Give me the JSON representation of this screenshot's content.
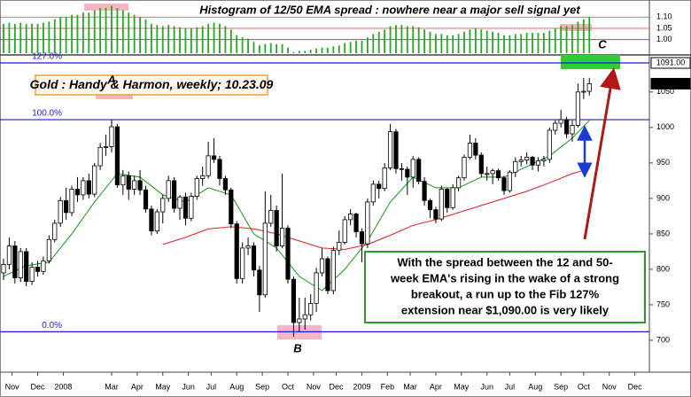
{
  "chart_data": [
    {
      "type": "candlestick",
      "title": "Gold : Handy & Harmon, weekly; 10.23.09",
      "ohlc": [
        [
          795,
          815,
          785,
          807
        ],
        [
          807,
          845,
          800,
          833
        ],
        [
          833,
          840,
          780,
          788
        ],
        [
          788,
          830,
          782,
          825
        ],
        [
          825,
          830,
          776,
          783
        ],
        [
          783,
          810,
          778,
          803
        ],
        [
          803,
          812,
          790,
          797
        ],
        [
          797,
          818,
          792,
          812
        ],
        [
          812,
          848,
          808,
          842
        ],
        [
          842,
          870,
          838,
          865
        ],
        [
          865,
          902,
          860,
          897
        ],
        [
          897,
          915,
          870,
          880
        ],
        [
          880,
          918,
          875,
          913
        ],
        [
          913,
          930,
          895,
          905
        ],
        [
          905,
          930,
          898,
          925
        ],
        [
          925,
          935,
          900,
          906
        ],
        [
          906,
          950,
          902,
          946
        ],
        [
          946,
          978,
          940,
          972
        ],
        [
          972,
          990,
          960,
          973
        ],
        [
          973,
          1011,
          965,
          1001
        ],
        [
          1001,
          1005,
          915,
          919
        ],
        [
          919,
          940,
          905,
          932
        ],
        [
          932,
          938,
          898,
          913
        ],
        [
          913,
          932,
          905,
          925
        ],
        [
          925,
          940,
          905,
          912
        ],
        [
          912,
          918,
          880,
          885
        ],
        [
          885,
          890,
          848,
          854
        ],
        [
          854,
          885,
          850,
          881
        ],
        [
          881,
          905,
          865,
          900
        ],
        [
          900,
          932,
          895,
          925
        ],
        [
          925,
          930,
          880,
          886
        ],
        [
          886,
          905,
          870,
          902
        ],
        [
          902,
          908,
          862,
          872
        ],
        [
          872,
          908,
          868,
          903
        ],
        [
          903,
          932,
          898,
          928
        ],
        [
          928,
          945,
          918,
          932
        ],
        [
          932,
          980,
          928,
          960
        ],
        [
          960,
          985,
          950,
          955
        ],
        [
          955,
          960,
          918,
          928
        ],
        [
          928,
          932,
          905,
          912
        ],
        [
          912,
          915,
          858,
          864
        ],
        [
          864,
          868,
          780,
          787
        ],
        [
          787,
          838,
          780,
          830
        ],
        [
          830,
          845,
          820,
          833
        ],
        [
          833,
          838,
          790,
          799
        ],
        [
          799,
          805,
          740,
          764
        ],
        [
          764,
          910,
          760,
          865
        ],
        [
          865,
          905,
          860,
          883
        ],
        [
          883,
          890,
          825,
          833
        ],
        [
          833,
          935,
          830,
          858
        ],
        [
          858,
          862,
          780,
          786
        ],
        [
          786,
          790,
          705,
          725
        ],
        [
          725,
          760,
          712,
          730
        ],
        [
          730,
          760,
          715,
          736
        ],
        [
          736,
          765,
          728,
          752
        ],
        [
          752,
          802,
          740,
          795
        ],
        [
          795,
          830,
          790,
          815
        ],
        [
          815,
          818,
          765,
          770
        ],
        [
          770,
          832,
          765,
          827
        ],
        [
          827,
          855,
          820,
          838
        ],
        [
          838,
          875,
          835,
          870
        ],
        [
          870,
          885,
          862,
          878
        ],
        [
          878,
          880,
          845,
          853
        ],
        [
          853,
          858,
          810,
          836
        ],
        [
          836,
          900,
          830,
          895
        ],
        [
          895,
          925,
          890,
          920
        ],
        [
          920,
          925,
          900,
          914
        ],
        [
          914,
          950,
          910,
          943
        ],
        [
          943,
          1005,
          940,
          994
        ],
        [
          994,
          998,
          935,
          942
        ],
        [
          942,
          950,
          925,
          941
        ],
        [
          941,
          945,
          905,
          930
        ],
        [
          930,
          960,
          915,
          955
        ],
        [
          955,
          958,
          920,
          924
        ],
        [
          924,
          930,
          890,
          897
        ],
        [
          897,
          900,
          872,
          884
        ],
        [
          884,
          888,
          865,
          871
        ],
        [
          871,
          918,
          868,
          913
        ],
        [
          913,
          915,
          880,
          887
        ],
        [
          887,
          920,
          884,
          915
        ],
        [
          915,
          932,
          910,
          929
        ],
        [
          929,
          962,
          925,
          958
        ],
        [
          958,
          990,
          955,
          978
        ],
        [
          978,
          985,
          955,
          961
        ],
        [
          961,
          965,
          930,
          935
        ],
        [
          935,
          945,
          925,
          935
        ],
        [
          935,
          942,
          920,
          939
        ],
        [
          939,
          942,
          925,
          929
        ],
        [
          929,
          932,
          905,
          911
        ],
        [
          911,
          940,
          908,
          937
        ],
        [
          937,
          958,
          930,
          952
        ],
        [
          952,
          960,
          945,
          954
        ],
        [
          954,
          965,
          948,
          958
        ],
        [
          958,
          960,
          940,
          947
        ],
        [
          947,
          958,
          938,
          953
        ],
        [
          953,
          960,
          945,
          955
        ],
        [
          955,
          1000,
          950,
          996
        ],
        [
          996,
          1010,
          990,
          1006
        ],
        [
          1006,
          1025,
          1000,
          1011
        ],
        [
          1011,
          1015,
          985,
          991
        ],
        [
          991,
          1010,
          980,
          1003
        ],
        [
          1003,
          1062,
          1000,
          1050
        ],
        [
          1050,
          1070,
          1040,
          1051
        ],
        [
          1051,
          1070,
          1045,
          1061.75
        ]
      ],
      "colors": {
        "up": "#ffffff",
        "down": "#000000"
      },
      "series": [
        {
          "color": "#119911",
          "x": [
            0,
            4,
            8,
            12,
            16,
            20,
            24,
            28,
            32,
            36,
            40,
            44,
            48,
            52,
            56,
            60,
            64,
            68,
            72,
            76,
            80,
            84,
            88,
            92,
            96,
            100,
            103
          ],
          "values": [
            790,
            805,
            810,
            850,
            895,
            935,
            930,
            905,
            895,
            915,
            905,
            850,
            830,
            790,
            770,
            800,
            840,
            895,
            930,
            915,
            915,
            930,
            930,
            945,
            960,
            985,
            1010
          ]
        },
        {
          "color": "#e02020",
          "x": [
            28,
            32,
            36,
            40,
            44,
            48,
            52,
            56,
            60,
            64,
            68,
            72,
            76,
            80,
            84,
            88,
            92,
            96,
            100,
            103
          ],
          "values": [
            835,
            845,
            857,
            860,
            857,
            850,
            840,
            830,
            828,
            835,
            848,
            862,
            870,
            880,
            890,
            900,
            910,
            922,
            935,
            942
          ]
        }
      ],
      "xticks": [
        {
          "value": 1.5,
          "label": "Nov"
        },
        {
          "value": 6,
          "label": "Dec"
        },
        {
          "value": 10.5,
          "label": "2008"
        },
        {
          "value": 19,
          "label": "Mar"
        },
        {
          "value": 23.5,
          "label": "Apr"
        },
        {
          "value": 28,
          "label": "May"
        },
        {
          "value": 32.5,
          "label": "Jun"
        },
        {
          "value": 36.5,
          "label": "Jul"
        },
        {
          "value": 41,
          "label": "Aug"
        },
        {
          "value": 45.5,
          "label": "Sep"
        },
        {
          "value": 50,
          "label": "Oct"
        },
        {
          "value": 54.5,
          "label": "Nov"
        },
        {
          "value": 58.5,
          "label": "Dec"
        },
        {
          "value": 63,
          "label": "2009"
        },
        {
          "value": 67.5,
          "label": "Feb"
        },
        {
          "value": 71.5,
          "label": "Mar"
        },
        {
          "value": 76,
          "label": "Apr"
        },
        {
          "value": 80.5,
          "label": "May"
        },
        {
          "value": 85,
          "label": "Jun"
        },
        {
          "value": 89,
          "label": "Jul"
        },
        {
          "value": 93.5,
          "label": "Aug"
        },
        {
          "value": 98,
          "label": "Sep"
        },
        {
          "value": 102,
          "label": "Oct"
        },
        {
          "value": 106.5,
          "label": "Nov"
        },
        {
          "value": 111,
          "label": "Dec"
        }
      ],
      "ylim": [
        655,
        1101
      ],
      "yticks": [
        700,
        750,
        800,
        850,
        900,
        950,
        1000,
        1050
      ],
      "price_markers": [
        {
          "value": 1091,
          "label": "1091.00"
        },
        {
          "value": 1061.75,
          "label": "1061.750"
        }
      ],
      "fib_levels": [
        {
          "value": 712,
          "label": "0.0%"
        },
        {
          "value": 1011,
          "label": "100.0%"
        },
        {
          "value": 1091,
          "label": "127.0%"
        }
      ],
      "fib_color": "#1a1adb",
      "point_labels": [
        "A",
        "B",
        "C"
      ],
      "note_lines": [
        "With the spread between the 12 and 50-",
        "week EMA's rising in the wake of a strong",
        "breakout, a run up to the Fib 127%",
        "extension near $1,090.00 is  very likely"
      ]
    },
    {
      "type": "bar",
      "title": "Histogram of 12/50 EMA spread : nowhere near a major sell signal yet",
      "color": "#22aa22",
      "values": [
        1.07,
        1.075,
        1.07,
        1.075,
        1.07,
        1.07,
        1.07,
        1.075,
        1.08,
        1.09,
        1.1,
        1.1,
        1.11,
        1.11,
        1.12,
        1.12,
        1.13,
        1.14,
        1.14,
        1.15,
        1.14,
        1.13,
        1.12,
        1.11,
        1.1,
        1.09,
        1.07,
        1.065,
        1.06,
        1.065,
        1.06,
        1.055,
        1.05,
        1.05,
        1.055,
        1.06,
        1.07,
        1.075,
        1.07,
        1.06,
        1.045,
        1.02,
        1.01,
        1.005,
        0.99,
        0.975,
        0.98,
        0.985,
        0.98,
        0.98,
        0.965,
        0.945,
        0.95,
        0.95,
        0.955,
        0.96,
        0.965,
        0.965,
        0.97,
        0.975,
        0.985,
        0.99,
        0.995,
        0.995,
        1.01,
        1.025,
        1.035,
        1.045,
        1.06,
        1.065,
        1.065,
        1.06,
        1.06,
        1.055,
        1.045,
        1.035,
        1.025,
        1.025,
        1.02,
        1.02,
        1.025,
        1.035,
        1.045,
        1.05,
        1.045,
        1.04,
        1.035,
        1.03,
        1.02,
        1.02,
        1.025,
        1.025,
        1.03,
        1.03,
        1.03,
        1.03,
        1.04,
        1.05,
        1.06,
        1.06,
        1.065,
        1.08,
        1.09,
        1.1
      ],
      "ylim": [
        0.94,
        1.16
      ],
      "yticks": [
        {
          "value": 1,
          "label": "1.00"
        },
        {
          "value": 1.05,
          "label": "1.05"
        },
        {
          "value": 1.1,
          "label": "1.10"
        }
      ]
    }
  ]
}
